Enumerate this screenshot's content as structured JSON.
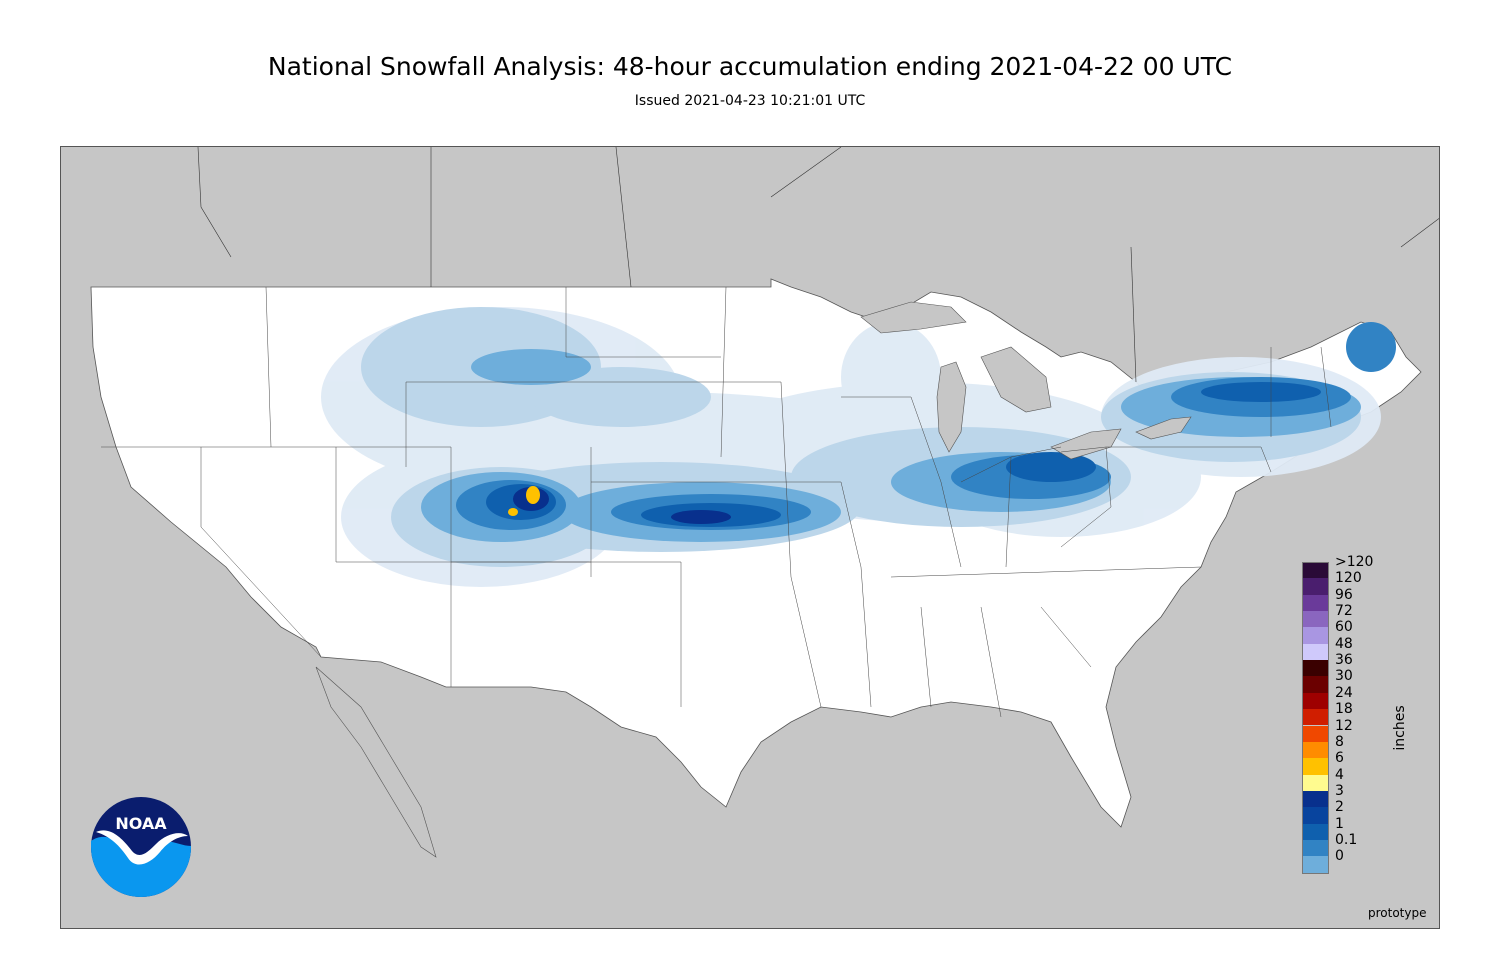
{
  "title": "National Snowfall Analysis: 48-hour accumulation ending 2021-04-22 00 UTC",
  "subtitle": "Issued 2021-04-23 10:21:01 UTC",
  "units_label": "inches",
  "footer_note": "prototype",
  "logo_text": "NOAA",
  "colors": {
    "land_outside": "#c6c6c6",
    "land_us": "#ffffff",
    "border": "#444444"
  },
  "legend": {
    "items": [
      {
        "label": ">120",
        "color": "#2a0a37"
      },
      {
        "label": "120",
        "color": "#4a1e6e"
      },
      {
        "label": "96",
        "color": "#6a3a9a"
      },
      {
        "label": "72",
        "color": "#8a66bf"
      },
      {
        "label": "60",
        "color": "#a996e2"
      },
      {
        "label": "48",
        "color": "#cfc9fb"
      },
      {
        "label": "36",
        "color": "#3a0000"
      },
      {
        "label": "30",
        "color": "#6b0000"
      },
      {
        "label": "24",
        "color": "#9e0000"
      },
      {
        "label": "18",
        "color": "#d01e00"
      },
      {
        "label": "12",
        "color": "#f04800"
      },
      {
        "label": "8",
        "color": "#ff8c00"
      },
      {
        "label": "6",
        "color": "#ffc100"
      },
      {
        "label": "4",
        "color": "#fffb8f"
      },
      {
        "label": "3",
        "color": "#08308d"
      },
      {
        "label": "2",
        "color": "#08449e"
      },
      {
        "label": "1",
        "color": "#0f60ae"
      },
      {
        "label": "0.1",
        "color": "#3183c4"
      },
      {
        "label": "0",
        "color": "#6eaedb"
      }
    ],
    "extra_colors": [
      "#bcd6ea",
      "#e1ecf6",
      "#ffffff"
    ]
  }
}
